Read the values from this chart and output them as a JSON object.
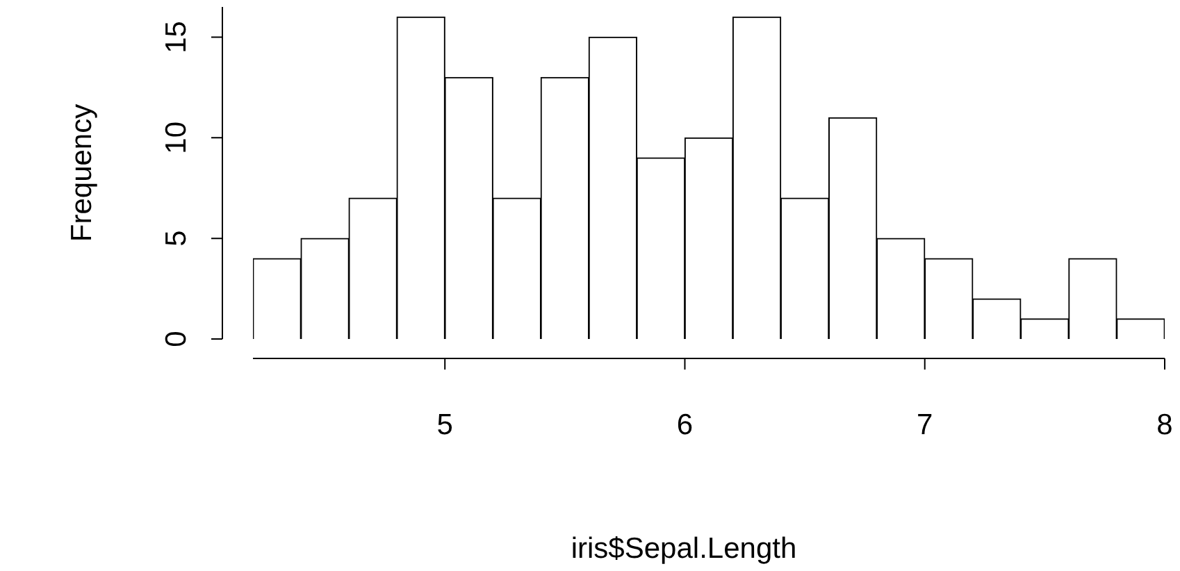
{
  "chart_data": {
    "type": "histogram",
    "xlabel": "iris$Sepal.Length",
    "ylabel": "Frequency",
    "bins": [
      4.2,
      4.4,
      4.6,
      4.8,
      5.0,
      5.2,
      5.4,
      5.6,
      5.8,
      6.0,
      6.2,
      6.4,
      6.6,
      6.8,
      7.0,
      7.2,
      7.4,
      7.6,
      7.8,
      8.0
    ],
    "values": [
      4,
      5,
      7,
      16,
      13,
      7,
      13,
      15,
      9,
      10,
      16,
      7,
      11,
      5,
      4,
      2,
      1,
      4,
      1
    ],
    "color": "#ffffff",
    "xlim": [
      4.2,
      8.0
    ],
    "ylim": [
      0,
      16.5
    ],
    "xticks": [
      5,
      6,
      7,
      8
    ],
    "yticks": [
      0,
      5,
      10,
      15
    ]
  }
}
